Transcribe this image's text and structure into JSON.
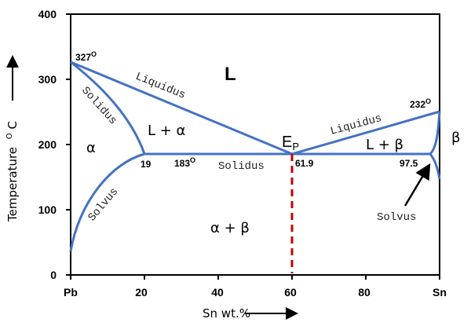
{
  "axes": {
    "x_label": "Sn wt.%",
    "y_label": "Temperature",
    "y_label_unit": "C",
    "y_label_degree": "O",
    "x_ticks": [
      "Pb",
      "20",
      "40",
      "60",
      "80",
      "Sn"
    ],
    "y_ticks": [
      "0",
      "100",
      "200",
      "300",
      "400"
    ]
  },
  "regions": {
    "liquid": "L",
    "alpha": "α",
    "beta": "β",
    "l_alpha": "L + α",
    "l_beta": "L + β",
    "alpha_beta": "α + β"
  },
  "lines": {
    "liquidus_left": "Liquidus",
    "liquidus_right": "Liquidus",
    "solidus_left": "Solidus",
    "solidus_eutectic": "Solidus",
    "solvus_left": "Solvus",
    "solvus_right": "Solvus"
  },
  "points": {
    "pb_melt": "327",
    "sn_melt": "232",
    "degree": "O",
    "eutectic_temp": "183",
    "alpha_limit": "19",
    "eutectic_comp": "61.9",
    "beta_limit": "97.5",
    "eutectic_label": "E",
    "eutectic_sub": "P"
  },
  "colors": {
    "curves": "#4472C4",
    "eutectic_line": "#C00000"
  }
}
